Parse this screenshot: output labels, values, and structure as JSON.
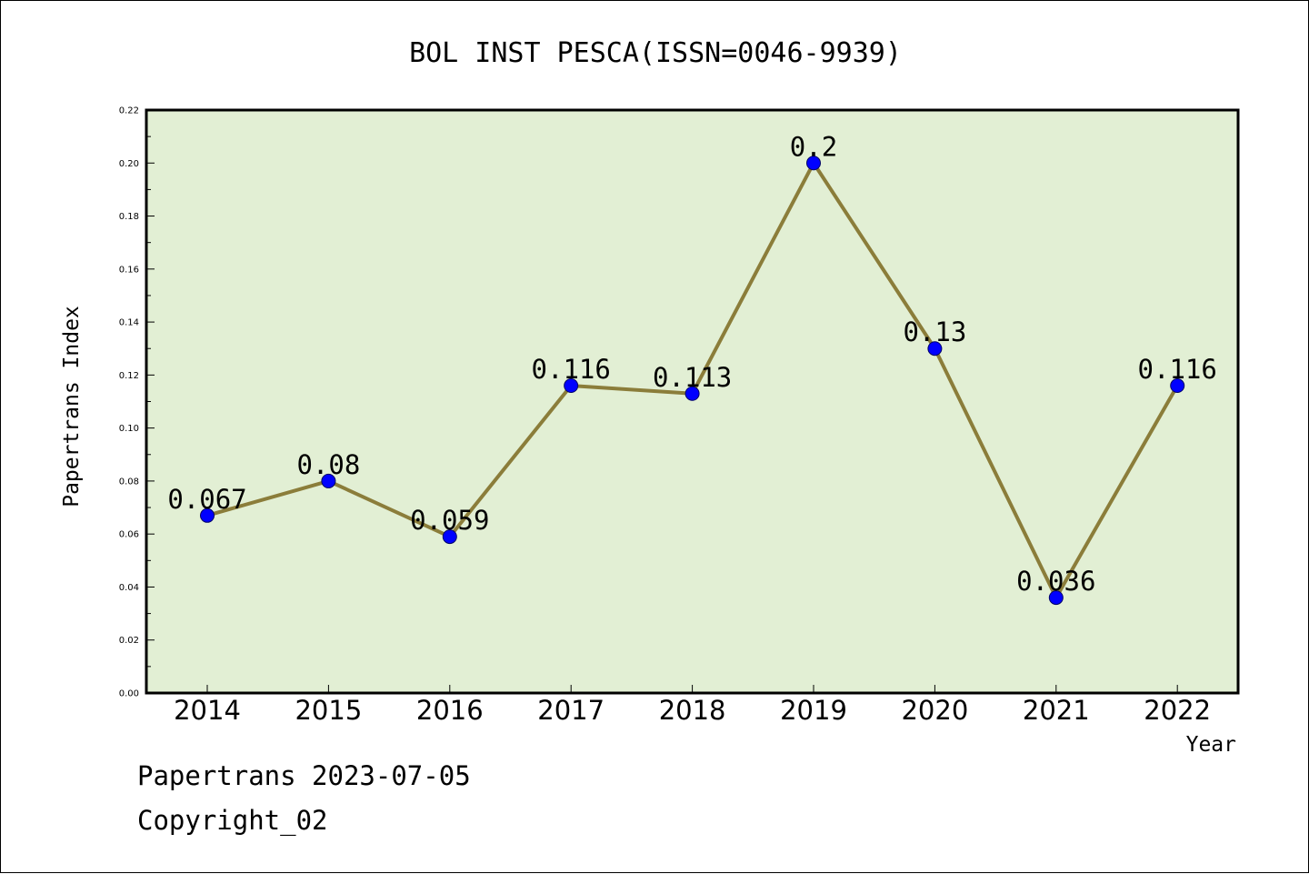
{
  "chart_data": {
    "type": "line",
    "title": "BOL INST PESCA(ISSN=0046-9939)",
    "xlabel": "Year",
    "ylabel": "Papertrans Index",
    "categories": [
      "2014",
      "2015",
      "2016",
      "2017",
      "2018",
      "2019",
      "2020",
      "2021",
      "2022"
    ],
    "series": [
      {
        "values": [
          0.067,
          0.08,
          0.059,
          0.116,
          0.113,
          0.2,
          0.13,
          0.036,
          0.116
        ],
        "data_labels": [
          "0.067",
          "0.08",
          "0.059",
          "0.116",
          "0.113",
          "0.2",
          "0.13",
          "0.036",
          "0.116"
        ],
        "line_color": "#8b7d3a",
        "marker_color": "#0000ff"
      }
    ],
    "ylim": [
      0,
      0.22
    ],
    "yticks": [
      "0.00",
      "0.02",
      "0.04",
      "0.06",
      "0.08",
      "0.10",
      "0.12",
      "0.14",
      "0.16",
      "0.18",
      "0.20",
      "0.22"
    ],
    "plot_background": "#e2efd4",
    "grid": false,
    "legend": "none"
  },
  "footer": {
    "source_line": "Papertrans 2023-07-05",
    "copyright_line": "Copyright_02"
  }
}
